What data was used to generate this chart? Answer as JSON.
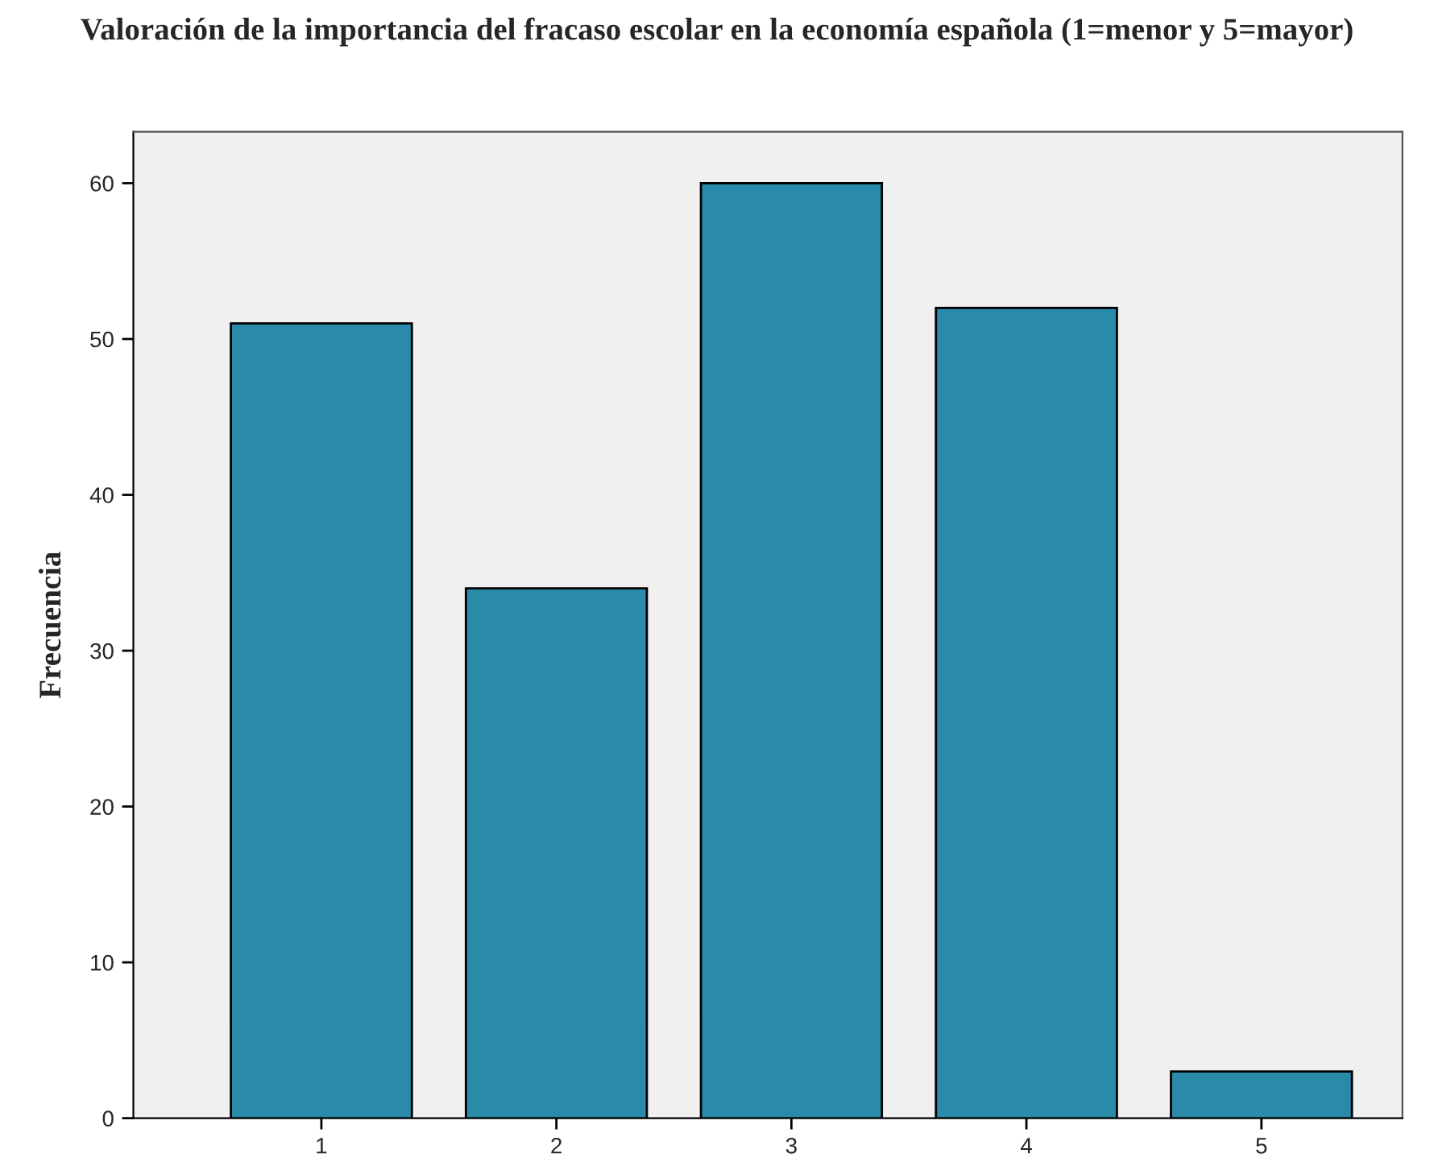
{
  "chart_data": {
    "type": "bar",
    "title": "Valoración de la importancia del fracaso escolar en la economía española (1=menor y 5=mayor)",
    "ylabel": "Frecuencia",
    "categories": [
      "1",
      "2",
      "3",
      "4",
      "5"
    ],
    "values": [
      51,
      34,
      60,
      52,
      3
    ],
    "color": "#2a8aaa",
    "ylim": [
      0,
      63.3
    ],
    "yticks": [
      0,
      10,
      20,
      30,
      40,
      50,
      60
    ],
    "grid": false,
    "legend": false
  }
}
